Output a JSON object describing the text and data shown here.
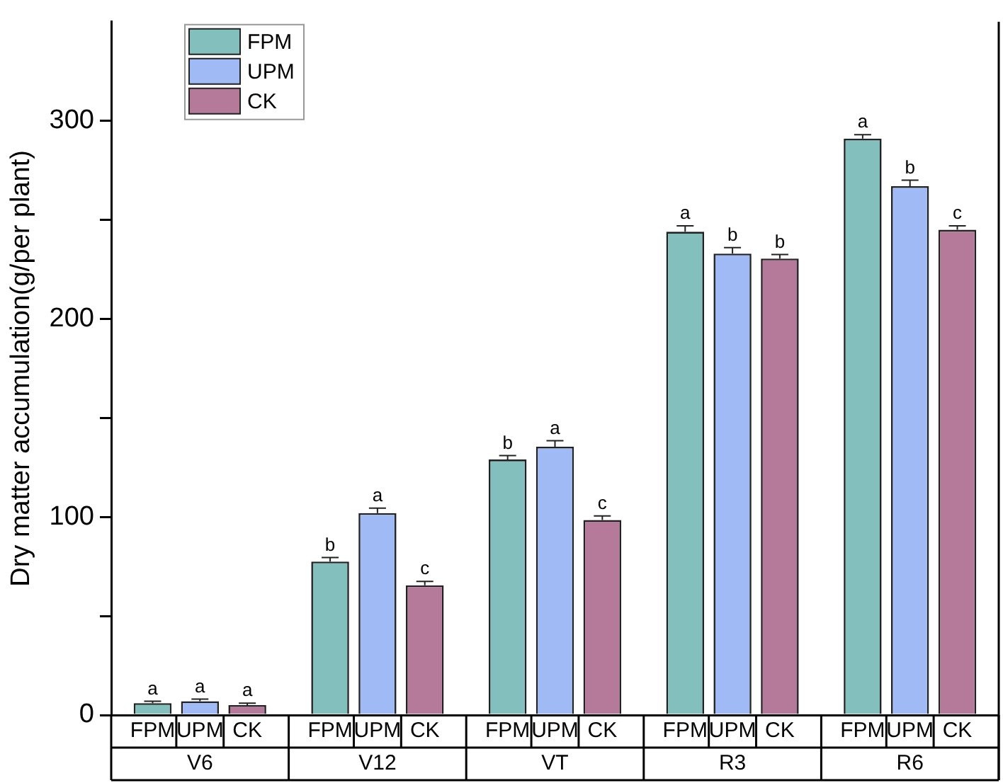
{
  "chart_data": {
    "type": "bar",
    "ylabel": "Dry matter accumulation(g/per plant)",
    "categories": [
      "V6",
      "V12",
      "VT",
      "R3",
      "R6"
    ],
    "series": [
      {
        "name": "FPM",
        "color": "#82bfbd",
        "values": [
          6,
          77.5,
          129,
          244,
          291
        ],
        "errors": [
          1,
          2,
          2,
          3,
          2
        ],
        "value_labels": [
          "a",
          "b",
          "b",
          "a",
          "a"
        ]
      },
      {
        "name": "UPM",
        "color": "#9fbaf5",
        "values": [
          7,
          102,
          135.5,
          233,
          267
        ],
        "errors": [
          1,
          2.5,
          3,
          3,
          3
        ],
        "value_labels": [
          "a",
          "a",
          "a",
          "b",
          "b"
        ]
      },
      {
        "name": "CK",
        "color": "#b57a9a",
        "values": [
          5,
          65.5,
          98.5,
          230.5,
          245
        ],
        "errors": [
          1,
          2,
          2,
          2,
          2
        ],
        "value_labels": [
          "a",
          "c",
          "c",
          "b",
          "c"
        ]
      }
    ],
    "ylim": [
      0,
      350
    ],
    "yticks": [
      0,
      {
        "value": 50,
        "label": null
      },
      100,
      {
        "value": 150,
        "label": null
      },
      200,
      {
        "value": 250,
        "label": null
      },
      300
    ],
    "grid": false,
    "legend": "top left"
  }
}
